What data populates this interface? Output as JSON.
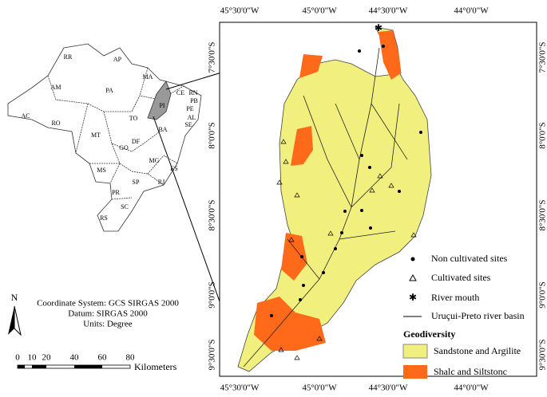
{
  "inset_map": {
    "state_labels": [
      "RR",
      "AP",
      "AM",
      "PA",
      "MA",
      "CE",
      "RN",
      "PB",
      "PE",
      "AL",
      "SE",
      "PI",
      "AC",
      "RO",
      "TO",
      "BA",
      "MT",
      "GO",
      "DF",
      "MG",
      "ES",
      "MS",
      "SP",
      "RJ",
      "PR",
      "SC",
      "RS"
    ]
  },
  "map": {
    "top_labels": [
      "45°30'0\"W",
      "45°0'0\"W",
      "44°30'0\"W",
      "44°0'0\"W"
    ],
    "bottom_labels": [
      "45°30'0\"W",
      "45°0'0\"W",
      "44°30'0\"W",
      "44°0'0\"W"
    ],
    "left_labels": [
      "7°30'0\"S",
      "8°0'0\"S",
      "8°30'0\"S",
      "9°0'0\"S",
      "9°30'0\"S"
    ],
    "right_labels": [
      "7°30'0\"S",
      "8°0'0\"S",
      "8°30'0\"S",
      "9°0'0\"S",
      "9°30'0\"S"
    ]
  },
  "legend": {
    "items": [
      "Non cultivated sites",
      "Cultivated sites",
      "River mouth",
      "Uruçui-Preto river basin"
    ],
    "title": "Geodiversity",
    "classes": [
      "Sandstone and Argilite",
      "Shalc and Siltstonc"
    ]
  },
  "coordinate_info": [
    "Coordinate System: GCS SIRGAS 2000",
    "Datum: SIRGAS 2000",
    "Units: Degree"
  ],
  "north": "N",
  "scale": {
    "ticks": [
      0,
      10,
      20,
      40,
      60,
      80
    ],
    "unit": "Kilometers"
  }
}
